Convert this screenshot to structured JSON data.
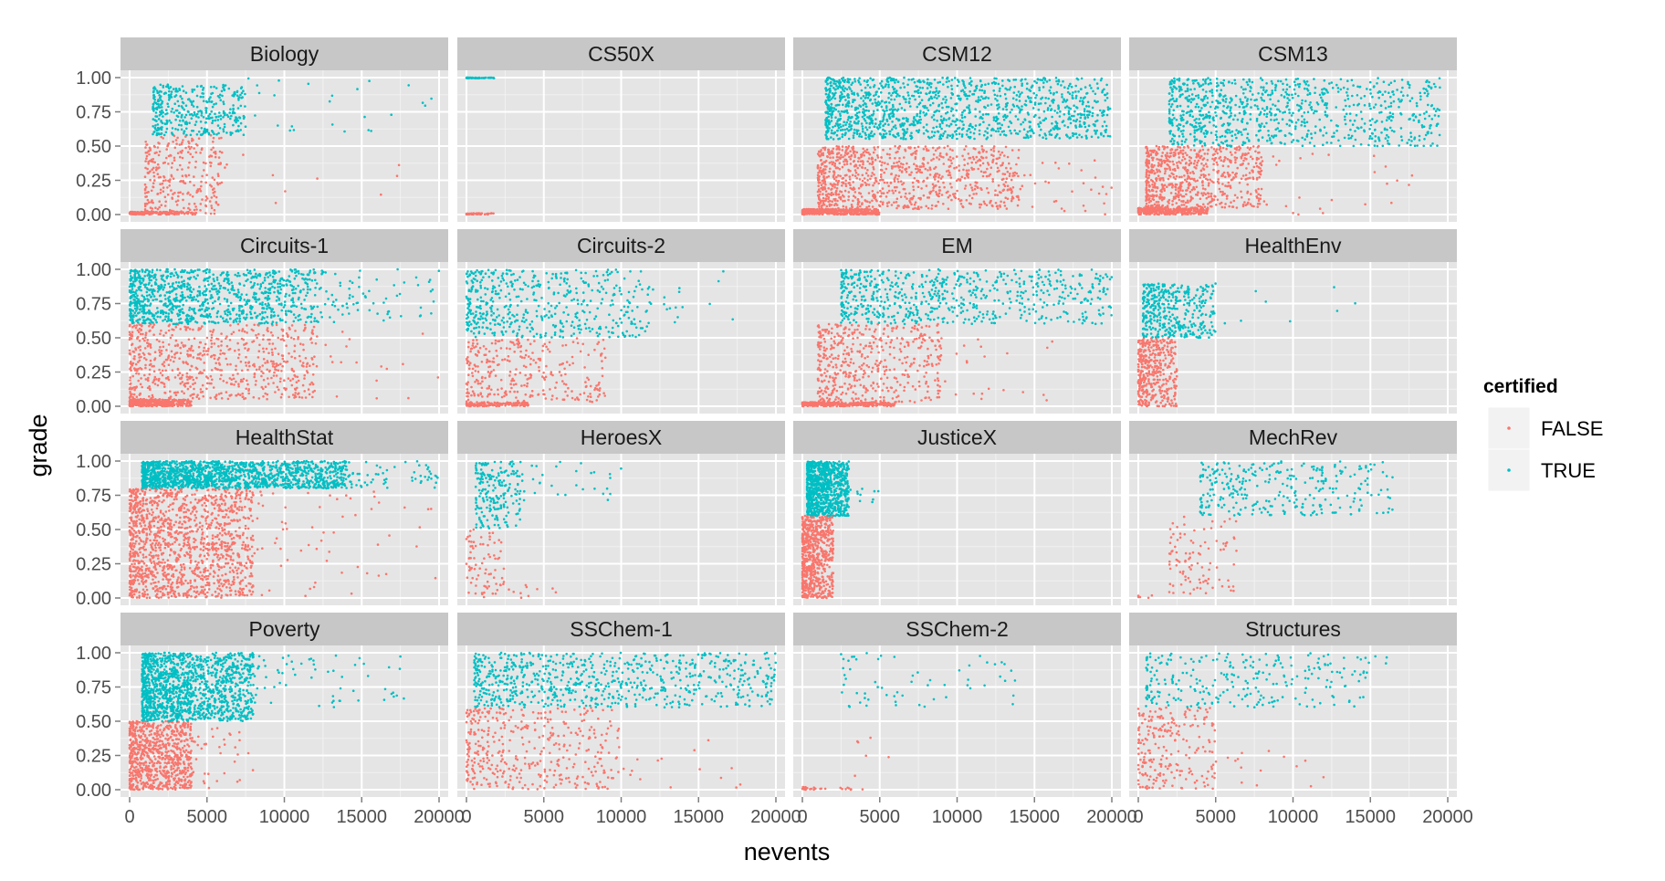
{
  "chart_data": {
    "type": "scatter",
    "x_label": "nevents",
    "y_label": "grade",
    "x_range": [
      0,
      20000
    ],
    "y_range": [
      0,
      1
    ],
    "x_ticks": [
      "0",
      "5000",
      "10000",
      "15000",
      "20000"
    ],
    "x_tick_values": [
      0,
      5000,
      10000,
      15000,
      20000
    ],
    "y_ticks": [
      "0.00",
      "0.25",
      "0.50",
      "0.75",
      "1.00"
    ],
    "y_tick_values": [
      0,
      0.25,
      0.5,
      0.75,
      1.0
    ],
    "grid": true,
    "legend": {
      "title": "certified",
      "position": "right",
      "items": [
        {
          "label": "FALSE",
          "color": "#F8766D"
        },
        {
          "label": "TRUE",
          "color": "#00BFC4"
        }
      ]
    },
    "panels": [
      {
        "name": "Biology",
        "certified_threshold": 0.58,
        "false_clusters": [
          [
            0,
            4200,
            0,
            0.02,
            160
          ],
          [
            1000,
            6000,
            0,
            0.58,
            300
          ],
          [
            6000,
            18000,
            0,
            0.45,
            10
          ]
        ],
        "true_clusters": [
          [
            1500,
            7500,
            0.58,
            0.95,
            380
          ],
          [
            7500,
            20000,
            0.6,
            1.0,
            25
          ]
        ]
      },
      {
        "name": "CS50X",
        "certified_threshold": 0.5,
        "false_clusters": [
          [
            0,
            1800,
            0,
            0.01,
            50
          ]
        ],
        "true_clusters": [
          [
            0,
            1800,
            0.995,
            1.0,
            50
          ]
        ]
      },
      {
        "name": "CSM12",
        "certified_threshold": 0.5,
        "false_clusters": [
          [
            0,
            5000,
            0,
            0.04,
            400
          ],
          [
            1000,
            14000,
            0.04,
            0.5,
            900
          ],
          [
            14000,
            20000,
            0,
            0.4,
            30
          ]
        ],
        "true_clusters": [
          [
            1500,
            20000,
            0.55,
            1.0,
            1300
          ]
        ]
      },
      {
        "name": "CSM13",
        "certified_threshold": 0.5,
        "false_clusters": [
          [
            0,
            4500,
            0,
            0.05,
            300
          ],
          [
            500,
            8000,
            0.05,
            0.5,
            700
          ],
          [
            8000,
            18000,
            0,
            0.45,
            25
          ]
        ],
        "true_clusters": [
          [
            2000,
            19500,
            0.5,
            1.0,
            900
          ]
        ]
      },
      {
        "name": "Circuits-1",
        "certified_threshold": 0.6,
        "false_clusters": [
          [
            0,
            4000,
            0,
            0.05,
            400
          ],
          [
            0,
            12000,
            0.05,
            0.6,
            700
          ],
          [
            12000,
            20000,
            0,
            0.55,
            20
          ]
        ],
        "true_clusters": [
          [
            0,
            12000,
            0.6,
            1.0,
            1000
          ],
          [
            12000,
            20000,
            0.6,
            1.0,
            80
          ]
        ]
      },
      {
        "name": "Circuits-2",
        "certified_threshold": 0.5,
        "false_clusters": [
          [
            0,
            4000,
            0,
            0.03,
            150
          ],
          [
            0,
            9000,
            0.03,
            0.5,
            300
          ]
        ],
        "true_clusters": [
          [
            0,
            12000,
            0.5,
            1.0,
            500
          ],
          [
            12000,
            18000,
            0.6,
            1.0,
            15
          ]
        ]
      },
      {
        "name": "EM",
        "certified_threshold": 0.6,
        "false_clusters": [
          [
            0,
            6000,
            0,
            0.03,
            350
          ],
          [
            1000,
            9000,
            0.03,
            0.6,
            500
          ],
          [
            9000,
            17000,
            0,
            0.5,
            20
          ]
        ],
        "true_clusters": [
          [
            2500,
            20000,
            0.6,
            1.0,
            650
          ]
        ]
      },
      {
        "name": "HealthEnv",
        "certified_threshold": 0.5,
        "false_clusters": [
          [
            0,
            2500,
            0,
            0.5,
            400
          ]
        ],
        "true_clusters": [
          [
            300,
            5000,
            0.5,
            0.9,
            400
          ],
          [
            5000,
            16000,
            0.6,
            0.9,
            8
          ]
        ]
      },
      {
        "name": "HealthStat",
        "certified_threshold": 0.8,
        "false_clusters": [
          [
            0,
            8000,
            0,
            0.8,
            1400
          ],
          [
            8000,
            20000,
            0,
            0.8,
            60
          ]
        ],
        "true_clusters": [
          [
            800,
            14000,
            0.8,
            1.0,
            1500
          ],
          [
            14000,
            20000,
            0.8,
            1.0,
            60
          ]
        ]
      },
      {
        "name": "HeroesX",
        "certified_threshold": 0.5,
        "false_clusters": [
          [
            0,
            2500,
            0,
            0.5,
            80
          ],
          [
            2500,
            7000,
            0,
            0.1,
            10
          ]
        ],
        "true_clusters": [
          [
            600,
            3500,
            0.5,
            1.0,
            200
          ],
          [
            3500,
            10000,
            0.7,
            1.0,
            30
          ]
        ]
      },
      {
        "name": "JusticeX",
        "certified_threshold": 0.6,
        "false_clusters": [
          [
            0,
            2000,
            0,
            0.6,
            700
          ]
        ],
        "true_clusters": [
          [
            300,
            3000,
            0.6,
            1.0,
            900
          ],
          [
            3000,
            5000,
            0.7,
            0.8,
            10
          ]
        ]
      },
      {
        "name": "MechRev",
        "certified_threshold": 0.6,
        "false_clusters": [
          [
            2000,
            6500,
            0,
            0.6,
            100
          ],
          [
            0,
            1000,
            0,
            0.02,
            5
          ]
        ],
        "true_clusters": [
          [
            4000,
            16500,
            0.6,
            1.0,
            300
          ]
        ]
      },
      {
        "name": "Poverty",
        "certified_threshold": 0.5,
        "false_clusters": [
          [
            0,
            4000,
            0,
            0.5,
            800
          ],
          [
            4000,
            8000,
            0,
            0.45,
            40
          ]
        ],
        "true_clusters": [
          [
            800,
            8000,
            0.5,
            1.0,
            1400
          ],
          [
            8000,
            18000,
            0.6,
            1.0,
            60
          ]
        ]
      },
      {
        "name": "SSChem-1",
        "certified_threshold": 0.6,
        "false_clusters": [
          [
            0,
            10000,
            0,
            0.6,
            400
          ],
          [
            10000,
            18000,
            0,
            0.4,
            15
          ]
        ],
        "true_clusters": [
          [
            500,
            20000,
            0.6,
            1.0,
            750
          ]
        ]
      },
      {
        "name": "SSChem-2",
        "certified_threshold": 0.6,
        "false_clusters": [
          [
            0,
            4000,
            0,
            0.02,
            25
          ],
          [
            3000,
            6000,
            0.1,
            0.4,
            6
          ]
        ],
        "true_clusters": [
          [
            2500,
            14000,
            0.6,
            1.0,
            60
          ]
        ]
      },
      {
        "name": "Structures",
        "certified_threshold": 0.6,
        "false_clusters": [
          [
            0,
            5000,
            0,
            0.6,
            220
          ],
          [
            5000,
            12000,
            0,
            0.3,
            15
          ]
        ],
        "true_clusters": [
          [
            500,
            15000,
            0.6,
            1.0,
            260
          ],
          [
            15000,
            18000,
            0.9,
            1.0,
            3
          ]
        ]
      }
    ]
  }
}
